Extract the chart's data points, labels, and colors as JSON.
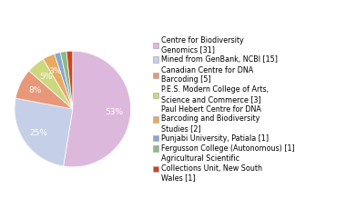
{
  "labels": [
    "Centre for Biodiversity\nGenomics [31]",
    "Mined from GenBank, NCBI [15]",
    "Canadian Centre for DNA\nBarcoding [5]",
    "P.E.S. Modern College of Arts,\nScience and Commerce [3]",
    "Paul Hebert Centre for DNA\nBarcoding and Biodiversity\nStudies [2]",
    "Punjabi University, Patiala [1]",
    "Fergusson College (Autonomous) [1]",
    "Agricultural Scientific\nCollections Unit, New South\nWales [1]"
  ],
  "values": [
    31,
    15,
    5,
    3,
    2,
    1,
    1,
    1
  ],
  "colors": [
    "#ddb8dd",
    "#c5d0e8",
    "#e89878",
    "#ccd880",
    "#e8aa60",
    "#88a8cc",
    "#90b888",
    "#cc4422"
  ],
  "figsize": [
    3.8,
    2.4
  ],
  "dpi": 100,
  "legend_fontsize": 5.8,
  "autopct_fontsize": 6.5
}
